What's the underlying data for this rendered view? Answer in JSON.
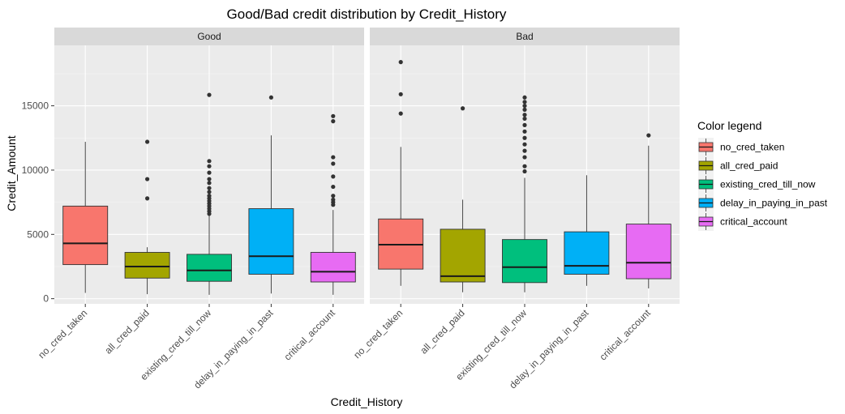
{
  "chart_data": {
    "type": "boxplot",
    "title": "Good/Bad credit distribution by Credit_History",
    "xlabel": "Credit_History",
    "ylabel": "Credit_Amount",
    "ylim": [
      -400,
      19700
    ],
    "yticks": [
      0,
      5000,
      10000,
      15000
    ],
    "grid": true,
    "legend_position": "right",
    "legend_title": "Color legend",
    "categories": [
      "no_cred_taken",
      "all_cred_paid",
      "existing_cred_till_now",
      "delay_in_paying_in_past",
      "critical_account"
    ],
    "colors": [
      "#F8766D",
      "#A3A500",
      "#00BF7D",
      "#00B0F6",
      "#E76BF3"
    ],
    "panels": [
      {
        "name": "Good",
        "boxes": [
          {
            "category": "no_cred_taken",
            "min": 450,
            "q1": 2650,
            "median": 4300,
            "q3": 7200,
            "max": 12200,
            "outliers": []
          },
          {
            "category": "all_cred_paid",
            "min": 350,
            "q1": 1600,
            "median": 2500,
            "q3": 3600,
            "max": 4000,
            "outliers": [
              7800,
              9300,
              12200
            ]
          },
          {
            "category": "existing_cred_till_now",
            "min": 300,
            "q1": 1350,
            "median": 2200,
            "q3": 3450,
            "max": 6500,
            "outliers": [
              6600,
              6800,
              7000,
              7200,
              7400,
              7600,
              7800,
              8000,
              8300,
              8600,
              9000,
              9300,
              9800,
              10300,
              10700,
              15850
            ]
          },
          {
            "category": "delay_in_paying_in_past",
            "min": 400,
            "q1": 1900,
            "median": 3300,
            "q3": 7000,
            "max": 12700,
            "outliers": [
              15650
            ]
          },
          {
            "category": "critical_account",
            "min": 300,
            "q1": 1300,
            "median": 2100,
            "q3": 3600,
            "max": 6900,
            "outliers": [
              7300,
              7500,
              7700,
              8000,
              8700,
              9500,
              10500,
              11000,
              13800,
              14200
            ]
          }
        ]
      },
      {
        "name": "Bad",
        "boxes": [
          {
            "category": "no_cred_taken",
            "min": 1000,
            "q1": 2300,
            "median": 4200,
            "q3": 6200,
            "max": 11800,
            "outliers": [
              14400,
              15900,
              18400
            ]
          },
          {
            "category": "all_cred_paid",
            "min": 500,
            "q1": 1300,
            "median": 1750,
            "q3": 5400,
            "max": 7700,
            "outliers": [
              14800
            ]
          },
          {
            "category": "existing_cred_till_now",
            "min": 500,
            "q1": 1250,
            "median": 2450,
            "q3": 4600,
            "max": 9400,
            "outliers": [
              9900,
              10300,
              11000,
              11500,
              12000,
              12500,
              13000,
              13500,
              14000,
              14300,
              14700,
              15000,
              15300,
              15650
            ]
          },
          {
            "category": "delay_in_paying_in_past",
            "min": 1000,
            "q1": 1900,
            "median": 2550,
            "q3": 5200,
            "max": 9600,
            "outliers": []
          },
          {
            "category": "critical_account",
            "min": 800,
            "q1": 1550,
            "median": 2800,
            "q3": 5800,
            "max": 11900,
            "outliers": [
              12700
            ]
          }
        ]
      }
    ]
  }
}
